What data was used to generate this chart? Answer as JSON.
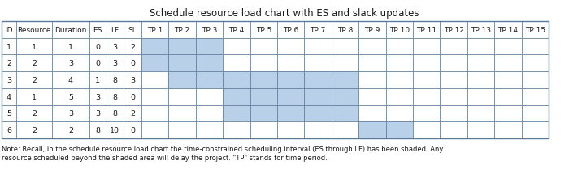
{
  "title": "Schedule resource load chart with ES and slack updates",
  "col_headers": [
    "ID",
    "Resource",
    "Duration",
    "ES",
    "LF",
    "SL",
    "TP 1",
    "TP 2",
    "TP 3",
    "TP 4",
    "TP 5",
    "TP 6",
    "TP 7",
    "TP 8",
    "TP 9",
    "TP 10",
    "TP 11",
    "TP 12",
    "TP 13",
    "TP 14",
    "TP 15"
  ],
  "rows": [
    [
      1,
      1,
      1,
      0,
      3,
      2
    ],
    [
      2,
      2,
      3,
      0,
      3,
      0
    ],
    [
      3,
      2,
      4,
      1,
      8,
      3
    ],
    [
      4,
      1,
      5,
      3,
      8,
      0
    ],
    [
      5,
      2,
      3,
      3,
      8,
      2
    ],
    [
      6,
      2,
      2,
      8,
      10,
      0
    ]
  ],
  "shade_color": "#b8d0e8",
  "cell_bg": "#ffffff",
  "grid_color": "#5a7a9a",
  "text_color": "#1a1a1a",
  "title_fontsize": 8.5,
  "cell_fontsize": 6.8,
  "note_line1": "Note: Recall, in the schedule resource load chart the time-constrained scheduling interval (ES through LF) has been shaded. Any",
  "note_line2": "resource scheduled beyond the shaded area will delay the project. \"TP\" stands for time period.",
  "note_fontsize": 6.0,
  "num_tp": 15
}
